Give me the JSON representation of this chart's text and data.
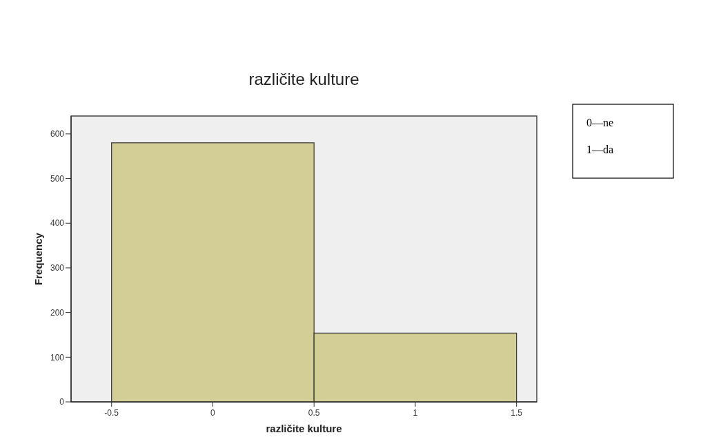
{
  "chart_data": {
    "type": "histogram",
    "title": "različite kulture",
    "xlabel": "različite kulture",
    "ylabel": "Frequency",
    "bins": [
      -0.5,
      0.5,
      1.5
    ],
    "values": [
      580,
      154
    ],
    "color": "#d3cd96",
    "xlim": [
      -0.7,
      1.6
    ],
    "xticks": [
      -0.5,
      0,
      0.5,
      1,
      1.5
    ],
    "ylim": [
      0,
      640
    ],
    "yticks": [
      0,
      100,
      200,
      300,
      400,
      500,
      600
    ],
    "annotations": [
      "0—ne",
      "1—da"
    ],
    "grid": false
  }
}
